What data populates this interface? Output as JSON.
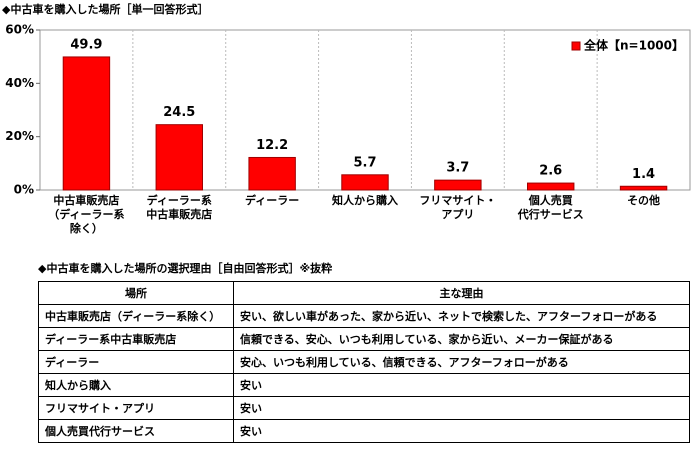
{
  "chart_data": {
    "type": "bar",
    "title": "◆中古車を購入した場所［単一回答形式］",
    "categories": [
      "中古車販売店\n（ディーラー系\n除く）",
      "ディーラー系\n中古車販売店",
      "ディーラー",
      "知人から購入",
      "フリマサイト・\nアプリ",
      "個人売買\n代行サービス",
      "その他"
    ],
    "series": [
      {
        "name": "全体【n=1000】",
        "color": "#ff0000",
        "values": [
          49.9,
          24.5,
          12.2,
          5.7,
          3.7,
          2.6,
          1.4
        ]
      }
    ],
    "ylim": [
      0,
      60
    ],
    "yticks": [
      {
        "value": 0,
        "label": "0%"
      },
      {
        "value": 20,
        "label": "20%"
      },
      {
        "value": 40,
        "label": "40%"
      },
      {
        "value": 60,
        "label": "60%"
      }
    ],
    "legend": "upper right"
  },
  "table": {
    "title": "◆中古車を購入した場所の選択理由［自由回答形式］※抜粋",
    "header": [
      "場所",
      "主な理由"
    ],
    "rows": [
      [
        "中古車販売店（ディーラー系除く）",
        "安い、欲しい車があった、家から近い、ネットで検索した、アフターフォローがある"
      ],
      [
        "ディーラー系中古車販売店",
        "信頼できる、安心、いつも利用している、家から近い、メーカー保証がある"
      ],
      [
        "ディーラー",
        "安心、いつも利用している、信頼できる、アフターフォローがある"
      ],
      [
        "知人から購入",
        "安い"
      ],
      [
        "フリマサイト・アプリ",
        "安い"
      ],
      [
        "個人売買代行サービス",
        "安い"
      ]
    ]
  }
}
